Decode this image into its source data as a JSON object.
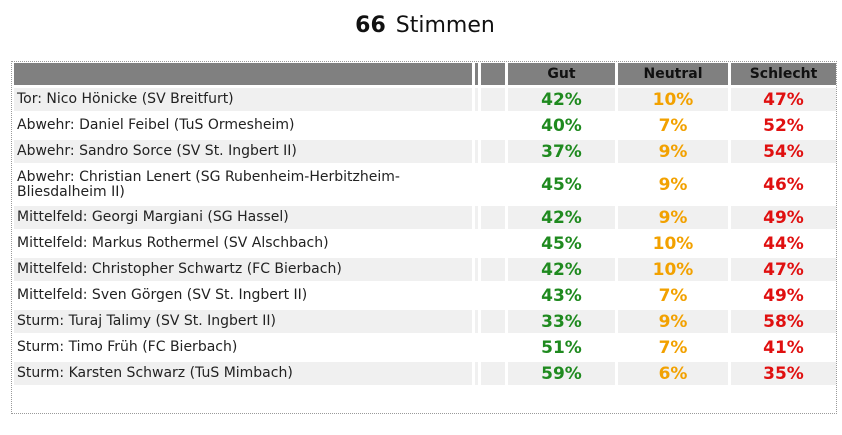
{
  "header": {
    "vote_count": "66",
    "vote_label": "Stimmen"
  },
  "columns": {
    "gut": "Gut",
    "neutral": "Neutral",
    "schlecht": "Schlecht"
  },
  "colors": {
    "gut": "#1f8a1f",
    "neutral": "#f2a100",
    "schlecht": "#e01010",
    "header_bg": "#808080"
  },
  "rows": [
    {
      "name": "Tor: Nico Hönicke (SV Breitfurt)",
      "gut": "42%",
      "neutral": "10%",
      "schlecht": "47%"
    },
    {
      "name": "Abwehr: Daniel Feibel (TuS Ormesheim)",
      "gut": "40%",
      "neutral": "7%",
      "schlecht": "52%"
    },
    {
      "name": "Abwehr: Sandro Sorce (SV St. Ingbert II)",
      "gut": "37%",
      "neutral": "9%",
      "schlecht": "54%"
    },
    {
      "name": "Abwehr: Christian Lenert (SG Rubenheim-Herbitzheim-Bliesdalheim II)",
      "gut": "45%",
      "neutral": "9%",
      "schlecht": "46%"
    },
    {
      "name": "Mittelfeld: Georgi Margiani (SG Hassel)",
      "gut": "42%",
      "neutral": "9%",
      "schlecht": "49%"
    },
    {
      "name": "Mittelfeld: Markus Rothermel (SV Alschbach)",
      "gut": "45%",
      "neutral": "10%",
      "schlecht": "44%"
    },
    {
      "name": "Mittelfeld: Christopher Schwartz (FC Bierbach)",
      "gut": "42%",
      "neutral": "10%",
      "schlecht": "47%"
    },
    {
      "name": "Mittelfeld: Sven Görgen (SV St. Ingbert II)",
      "gut": "43%",
      "neutral": "7%",
      "schlecht": "49%"
    },
    {
      "name": "Sturm: Turaj Talimy (SV St. Ingbert II)",
      "gut": "33%",
      "neutral": "9%",
      "schlecht": "58%"
    },
    {
      "name": "Sturm: Timo Früh (FC Bierbach)",
      "gut": "51%",
      "neutral": "7%",
      "schlecht": "41%"
    },
    {
      "name": "Sturm: Karsten Schwarz (TuS Mimbach)",
      "gut": "59%",
      "neutral": "6%",
      "schlecht": "35%"
    }
  ]
}
